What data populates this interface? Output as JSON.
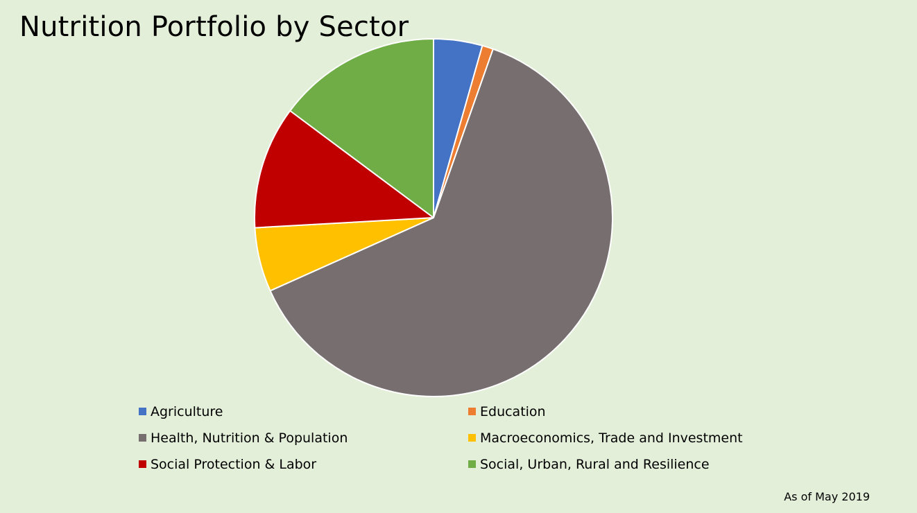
{
  "chart_data": {
    "type": "pie",
    "title": "Nutrition Portfolio by Sector",
    "note": "As of May 2019",
    "categories": [
      "Agriculture",
      "Education",
      "Health, Nutrition & Population",
      "Macroeconomics, Trade and Investment",
      "Social Protection & Labor",
      "Social, Urban, Rural and Resilience"
    ],
    "values": [
      4.4,
      1.0,
      62.9,
      5.8,
      11.1,
      14.8
    ],
    "unit": "percent of portfolio (estimated)",
    "colors": [
      "#4472c4",
      "#ed7d31",
      "#776f6f",
      "#ffc000",
      "#c00000",
      "#70ad47"
    ],
    "start_angle_deg": 0,
    "direction": "clockwise",
    "legend": "bottom"
  }
}
